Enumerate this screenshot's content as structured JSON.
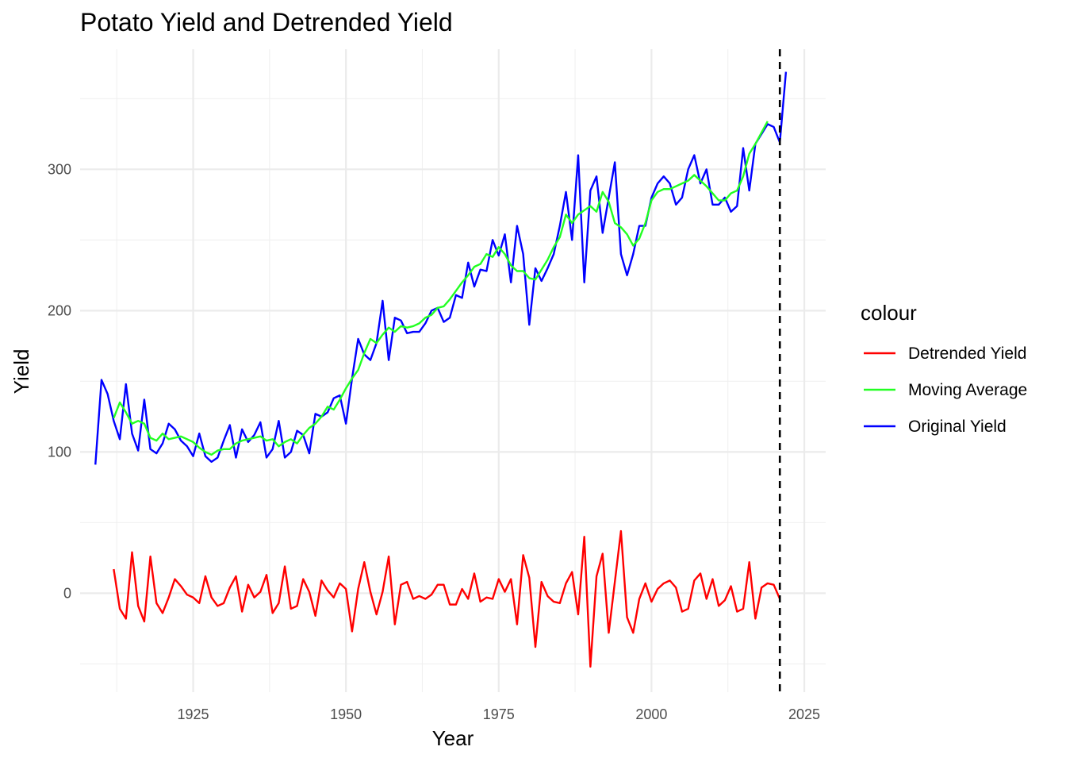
{
  "chart_data": {
    "type": "line",
    "title": "Potato Yield and Detrended Yield",
    "xlabel": "Year",
    "ylabel": "Yield",
    "xlim": [
      1906.5,
      2028.5
    ],
    "ylim": [
      -70,
      385
    ],
    "x_ticks": [
      1925,
      1950,
      1975,
      2000,
      2025
    ],
    "y_ticks": [
      0,
      100,
      200,
      300
    ],
    "grid": true,
    "legend_position": "right",
    "legend_title": "colour",
    "vline": {
      "x": 2021,
      "style": "dashed",
      "color": "#000000"
    },
    "series": [
      {
        "name": "Detrended Yield",
        "color": "#ff0000",
        "start_year": 1912,
        "values": [
          17,
          -11,
          -18,
          29,
          -9,
          -20,
          26,
          -7,
          -14,
          -3,
          10,
          5,
          -1,
          -3,
          -7,
          12,
          -3,
          -9,
          -7,
          4,
          12,
          -13,
          6,
          -3,
          1,
          13,
          -14,
          -7,
          19,
          -11,
          -9,
          10,
          1,
          -16,
          9,
          2,
          -3,
          7,
          3,
          -27,
          3,
          22,
          1,
          -15,
          1,
          26,
          -22,
          6,
          8,
          -4,
          -2,
          -4,
          -1,
          6,
          6,
          -8,
          -8,
          3,
          -4,
          14,
          -6,
          -3,
          -4,
          10,
          1,
          10,
          -22,
          27,
          11,
          -38,
          8,
          -2,
          -6,
          -7,
          7,
          15,
          -15,
          40,
          -52,
          12,
          28,
          -28,
          8,
          44,
          -17,
          -28,
          -4,
          7,
          -6,
          3,
          7,
          9,
          4,
          -13,
          -11,
          9,
          14,
          -4,
          10,
          -9,
          -5,
          5,
          -13,
          -11,
          22,
          -18,
          4,
          7,
          6,
          -4
        ]
      },
      {
        "name": "Moving Average",
        "color": "#22ff22",
        "start_year": 1912,
        "values": [
          124,
          135,
          128,
          120,
          122,
          120,
          110,
          108,
          113,
          109,
          110,
          111,
          109,
          107,
          103,
          100,
          98,
          101,
          102,
          102,
          106,
          108,
          109,
          110,
          111,
          108,
          109,
          104,
          107,
          109,
          106,
          112,
          117,
          120,
          125,
          132,
          130,
          137,
          145,
          152,
          158,
          170,
          180,
          177,
          183,
          188,
          185,
          189,
          188,
          189,
          191,
          195,
          197,
          202,
          203,
          208,
          214,
          220,
          225,
          231,
          233,
          240,
          238,
          245,
          240,
          232,
          228,
          228,
          223,
          222,
          229,
          236,
          245,
          252,
          268,
          262,
          268,
          271,
          274,
          270,
          284,
          277,
          262,
          259,
          254,
          246,
          251,
          262,
          278,
          284,
          286,
          286,
          288,
          290,
          292,
          296,
          292,
          288,
          283,
          278,
          278,
          283,
          285,
          295,
          311,
          318,
          326,
          334
        ]
      },
      {
        "name": "Original Yield",
        "color": "#0000ff",
        "start_year": 1909,
        "values": [
          91,
          151,
          141,
          122,
          109,
          148,
          113,
          101,
          137,
          102,
          99,
          106,
          120,
          116,
          108,
          104,
          97,
          113,
          97,
          93,
          96,
          108,
          119,
          96,
          116,
          107,
          112,
          121,
          96,
          102,
          122,
          96,
          100,
          115,
          112,
          99,
          127,
          125,
          128,
          138,
          140,
          120,
          152,
          180,
          169,
          165,
          177,
          207,
          165,
          195,
          193,
          184,
          185,
          185,
          191,
          200,
          202,
          192,
          195,
          211,
          209,
          234,
          217,
          229,
          228,
          250,
          239,
          254,
          220,
          260,
          240,
          190,
          230,
          221,
          230,
          240,
          260,
          284,
          250,
          310,
          220,
          285,
          295,
          255,
          280,
          305,
          240,
          225,
          240,
          260,
          260,
          280,
          290,
          295,
          290,
          275,
          280,
          300,
          310,
          290,
          300,
          275,
          275,
          280,
          270,
          274,
          315,
          285,
          318,
          325,
          332,
          330,
          319,
          369
        ]
      }
    ]
  }
}
